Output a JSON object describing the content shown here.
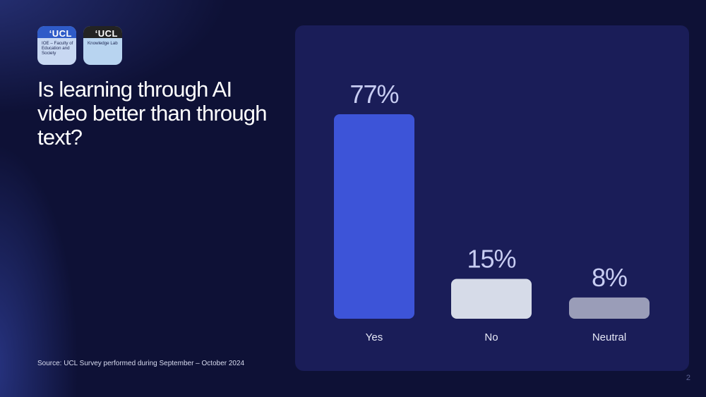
{
  "logos": [
    {
      "brand": "‘UCL",
      "text": "IOE – Faculty of Education and Society"
    },
    {
      "brand": "‘UCL",
      "text": "Knowledge Lab"
    }
  ],
  "title": "Is learning through AI video better than through text?",
  "source": "Source: UCL Survey performed during September – October 2024",
  "page_number": "2",
  "colors": {
    "background": "#0e1136",
    "panel": "#1a1d58",
    "yes": "#3d54d8",
    "no": "#d6dbe8",
    "neutral": "#9a9db8",
    "label": "#c8cdf2"
  },
  "chart_data": {
    "type": "bar",
    "categories": [
      "Yes",
      "No",
      "Neutral"
    ],
    "values": [
      77,
      15,
      8
    ],
    "value_labels": [
      "77%",
      "15%",
      "8%"
    ],
    "ylim": [
      0,
      77
    ],
    "title": "",
    "xlabel": "",
    "ylabel": "",
    "grid": false
  }
}
